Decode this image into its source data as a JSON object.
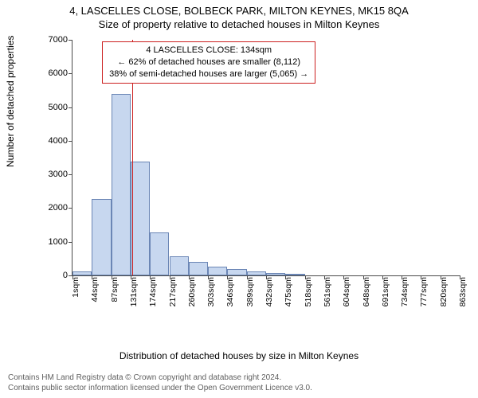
{
  "titles": {
    "line1": "4, LASCELLES CLOSE, BOLBECK PARK, MILTON KEYNES, MK15 8QA",
    "line2": "Size of property relative to detached houses in Milton Keynes"
  },
  "axes": {
    "x_label": "Distribution of detached houses by size in Milton Keynes",
    "y_label": "Number of detached properties",
    "ylim": [
      0,
      7000
    ],
    "ytick_step": 1000,
    "y_ticks": [
      0,
      1000,
      2000,
      3000,
      4000,
      5000,
      6000,
      7000
    ]
  },
  "histogram": {
    "type": "histogram",
    "bin_width_sqm": 43,
    "bin_start_sqm": 1,
    "x_tick_labels": [
      "1sqm",
      "44sqm",
      "87sqm",
      "131sqm",
      "174sqm",
      "217sqm",
      "260sqm",
      "303sqm",
      "346sqm",
      "389sqm",
      "432sqm",
      "475sqm",
      "518sqm",
      "561sqm",
      "604sqm",
      "648sqm",
      "691sqm",
      "734sqm",
      "777sqm",
      "820sqm",
      "863sqm"
    ],
    "values": [
      120,
      2280,
      5400,
      3380,
      1280,
      560,
      400,
      260,
      180,
      110,
      80,
      50,
      0,
      0,
      0,
      0,
      0,
      0,
      0,
      0
    ],
    "bar_color": "#c7d7ef",
    "bar_border_color": "#6b86b5",
    "bar_border_width": 1
  },
  "marker": {
    "value_sqm": 134,
    "line_color": "#cc2020",
    "annotation_lines": [
      "4 LASCELLES CLOSE: 134sqm",
      "← 62% of detached houses are smaller (8,112)",
      "38% of semi-detached houses are larger (5,065) →"
    ],
    "box_border_color": "#cc2020",
    "box_bg_color": "#ffffff"
  },
  "plot_style": {
    "background_color": "#ffffff",
    "axis_color": "#4a4a4a",
    "tick_fontsize": 11,
    "label_fontsize": 12,
    "title_fontsize": 13
  },
  "footer": {
    "line1": "Contains HM Land Registry data © Crown copyright and database right 2024.",
    "line2": "Contains public sector information licensed under the Open Government Licence v3.0."
  }
}
